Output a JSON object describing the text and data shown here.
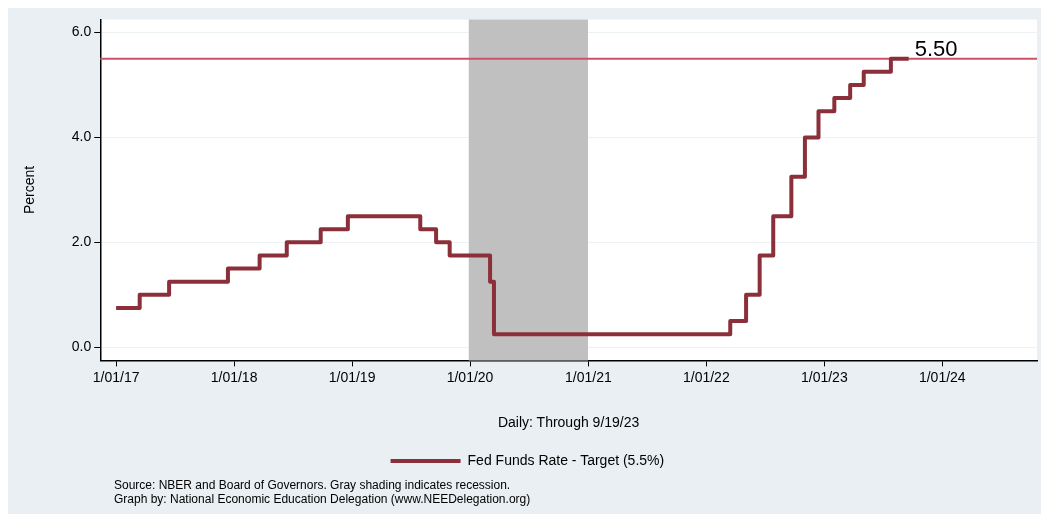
{
  "chart_data": {
    "type": "step",
    "xlabel": "Daily: Through 9/19/23",
    "ylabel": "Percent",
    "x": [
      "2017-01-01",
      "2017-03-15",
      "2017-06-14",
      "2017-12-13",
      "2018-03-21",
      "2018-06-13",
      "2018-09-26",
      "2018-12-19",
      "2019-07-31",
      "2019-09-18",
      "2019-10-30",
      "2020-03-03",
      "2020-03-15",
      "2022-03-16",
      "2022-05-04",
      "2022-06-15",
      "2022-07-27",
      "2022-09-21",
      "2022-11-02",
      "2022-12-14",
      "2023-02-01",
      "2023-03-22",
      "2023-05-03",
      "2023-07-26",
      "2023-09-19"
    ],
    "series": [
      {
        "name": "Fed Funds Rate - Target (5.5%)",
        "color": "#8b2f3a",
        "values": [
          0.75,
          1.0,
          1.25,
          1.5,
          1.75,
          2.0,
          2.25,
          2.5,
          2.25,
          2.0,
          1.75,
          1.25,
          0.25,
          0.5,
          1.0,
          1.75,
          2.5,
          3.25,
          4.0,
          4.5,
          4.75,
          5.0,
          5.25,
          5.5,
          5.5
        ]
      }
    ],
    "xlim": [
      "2016-11-13",
      "2024-10-20"
    ],
    "xticks": [
      {
        "value": "2017-01-01",
        "label": "1/01/17"
      },
      {
        "value": "2018-01-01",
        "label": "1/01/18"
      },
      {
        "value": "2019-01-01",
        "label": "1/01/19"
      },
      {
        "value": "2020-01-01",
        "label": "1/01/20"
      },
      {
        "value": "2021-01-01",
        "label": "1/01/21"
      },
      {
        "value": "2022-01-01",
        "label": "1/01/22"
      },
      {
        "value": "2023-01-01",
        "label": "1/01/23"
      },
      {
        "value": "2024-01-01",
        "label": "1/01/24"
      }
    ],
    "ylim": [
      -0.25,
      6.25
    ],
    "yticks": [
      {
        "value": 0,
        "label": "0.0"
      },
      {
        "value": 2,
        "label": "2.0"
      },
      {
        "value": 4,
        "label": "4.0"
      },
      {
        "value": 6,
        "label": "6.0"
      }
    ],
    "ref_lines": [
      {
        "axis": "y",
        "value": 5.5,
        "color": "#d0506a"
      }
    ],
    "bands": [
      {
        "axis": "x",
        "from": "2019-12-28",
        "to": "2020-12-31",
        "color": "#c0c0c0"
      }
    ],
    "annotations": [
      {
        "text": "5.50",
        "x": "2023-09-19",
        "y": 5.5
      },
      "Source: NBER and Board of Governors. Gray shading indicates recession.",
      "Graph by: National Economic Education Delegation (www.NEEDelegation.org)"
    ],
    "grid": "y",
    "legend": "bottom",
    "line_style": "solid",
    "marker": "none"
  }
}
